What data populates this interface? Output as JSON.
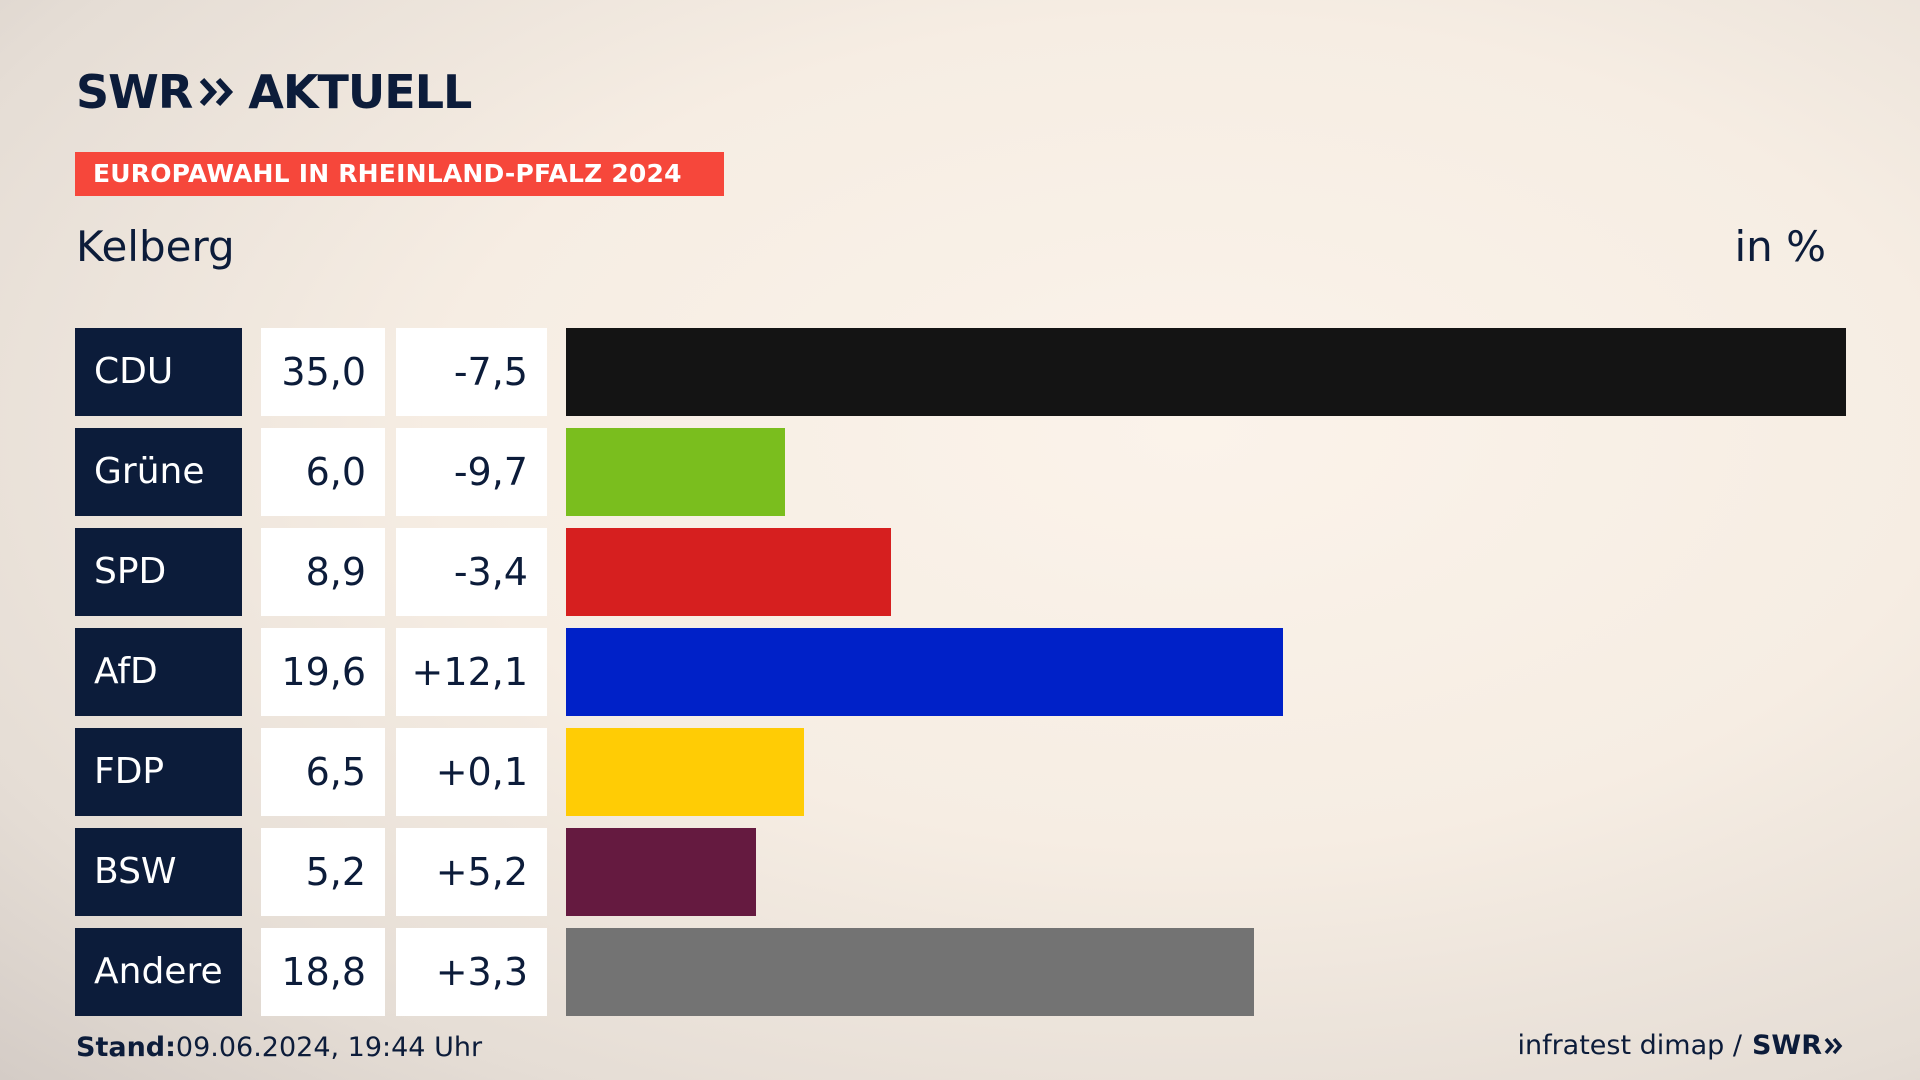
{
  "header": {
    "logo_text": "SWR",
    "logo_suffix": "AKTUELL",
    "banner": "EUROPAWAHL IN RHEINLAND-PFALZ 2024",
    "region": "Kelberg",
    "unit": "in %"
  },
  "footer": {
    "stand_label": "Stand:",
    "stand_value": "09.06.2024, 19:44 Uhr",
    "source": "infratest dimap /",
    "source_logo": "SWR"
  },
  "chart_data": {
    "type": "bar",
    "orientation": "horizontal",
    "categories": [
      "CDU",
      "Grüne",
      "SPD",
      "AfD",
      "FDP",
      "BSW",
      "Andere"
    ],
    "values": [
      35.0,
      6.0,
      8.9,
      19.6,
      6.5,
      5.2,
      18.8
    ],
    "value_labels": [
      "35,0",
      "6,0",
      "8,9",
      "19,6",
      "6,5",
      "5,2",
      "18,8"
    ],
    "diff_labels": [
      "-7,5",
      "-9,7",
      "-3,4",
      "+12,1",
      "+0,1",
      "+5,2",
      "+3,3"
    ],
    "diffs": [
      -7.5,
      -9.7,
      -3.4,
      12.1,
      0.1,
      5.2,
      3.3
    ],
    "colors": [
      "#141414",
      "#7abe1e",
      "#d61f1f",
      "#0021c8",
      "#ffcc05",
      "#651a40",
      "#737373"
    ],
    "xlim": [
      0,
      35.0
    ],
    "grid": false,
    "legend": "none"
  }
}
